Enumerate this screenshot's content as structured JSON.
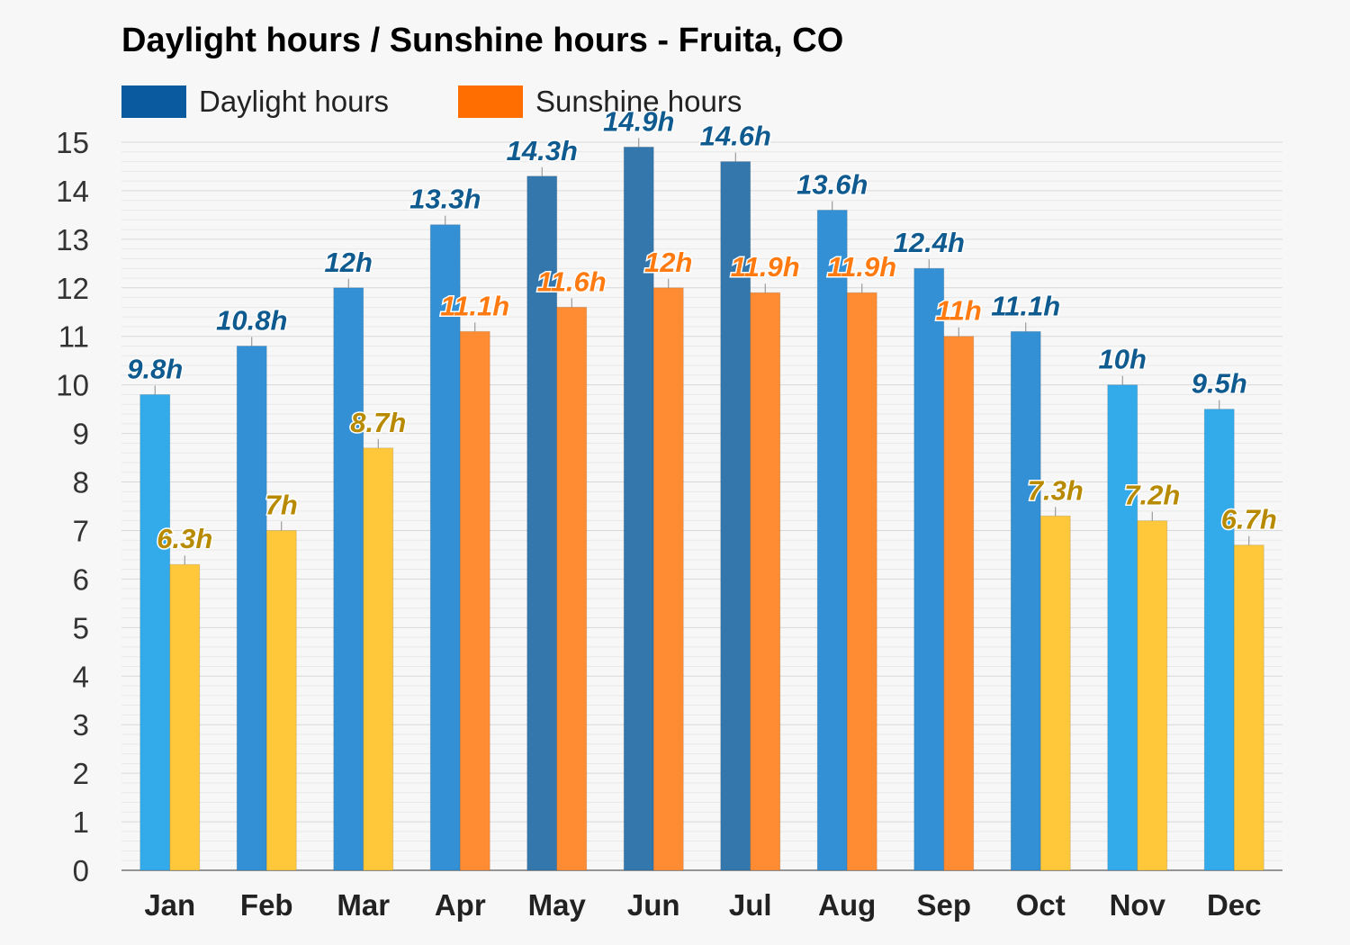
{
  "title": "Daylight hours / Sunshine hours - Fruita, CO",
  "legend": {
    "daylight_label": "Daylight hours",
    "sunshine_label": "Sunshine hours"
  },
  "colors": {
    "daylight_swatch": "#0a5aa0",
    "sunshine_swatch": "#ff6e00",
    "daylight_light": "#33aaea",
    "daylight_mid": "#3390d4",
    "daylight_dark": "#3377ad",
    "sunshine_light": "#ffc83a",
    "sunshine_orange": "#ff8c33",
    "label_blue": "#0f5a8f",
    "label_orange": "#ff7a10",
    "label_gold": "#b88a00"
  },
  "chart_data": {
    "type": "bar",
    "title": "Daylight hours / Sunshine hours - Fruita, CO",
    "categories": [
      "Jan",
      "Feb",
      "Mar",
      "Apr",
      "May",
      "Jun",
      "Jul",
      "Aug",
      "Sep",
      "Oct",
      "Nov",
      "Dec"
    ],
    "series": [
      {
        "name": "Daylight hours",
        "values": [
          9.8,
          10.8,
          12,
          13.3,
          14.3,
          14.9,
          14.6,
          13.6,
          12.4,
          11.1,
          10,
          9.5
        ],
        "labels": [
          "9.8h",
          "10.8h",
          "12h",
          "13.3h",
          "14.3h",
          "14.9h",
          "14.6h",
          "13.6h",
          "12.4h",
          "11.1h",
          "10h",
          "9.5h"
        ]
      },
      {
        "name": "Sunshine hours",
        "values": [
          6.3,
          7,
          8.7,
          11.1,
          11.6,
          12,
          11.9,
          11.9,
          11,
          7.3,
          7.2,
          6.7
        ],
        "labels": [
          "6.3h",
          "7h",
          "8.7h",
          "11.1h",
          "11.6h",
          "12h",
          "11.9h",
          "11.9h",
          "11h",
          "7.3h",
          "7.2h",
          "6.7h"
        ]
      }
    ],
    "ylim": [
      0,
      15
    ],
    "yticks": [
      "0",
      "1",
      "2",
      "3",
      "4",
      "5",
      "6",
      "7",
      "8",
      "9",
      "10",
      "11",
      "12",
      "13",
      "14",
      "15"
    ],
    "xlabel": "",
    "ylabel": "",
    "grid": true,
    "legend_position": "top-left"
  }
}
